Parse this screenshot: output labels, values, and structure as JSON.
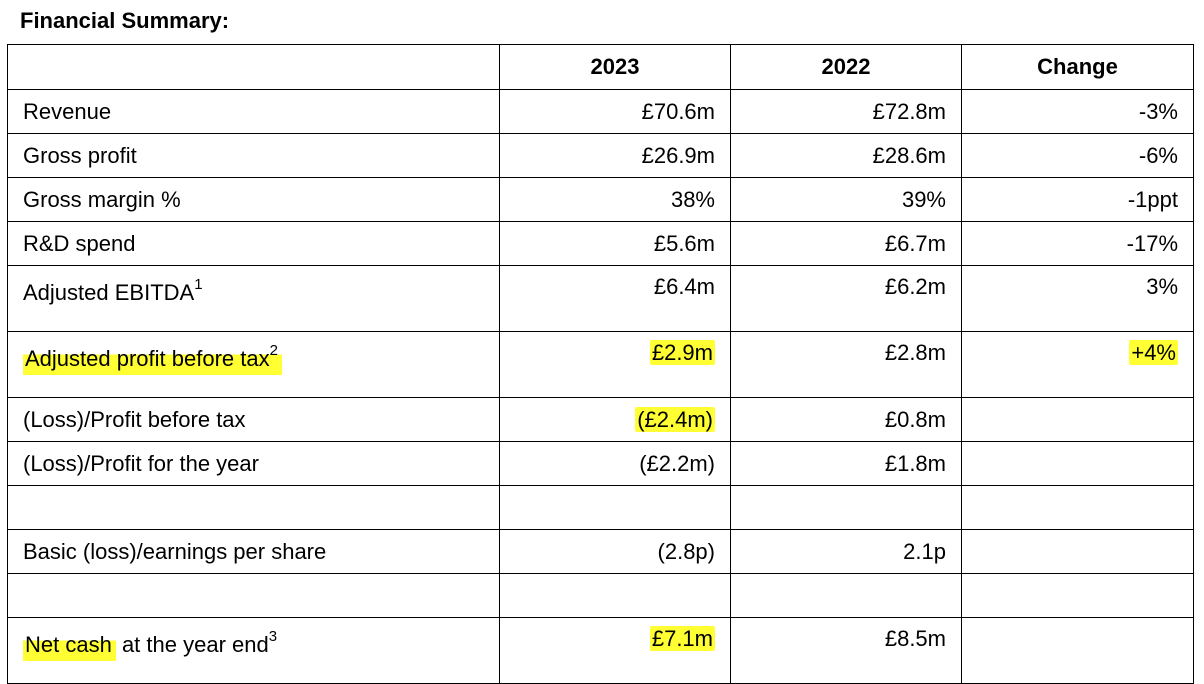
{
  "title": "Financial Summary:",
  "columns": [
    "",
    "2023",
    "2022",
    "Change"
  ],
  "rows": [
    {
      "label": "Revenue",
      "sup": "",
      "v2023": "£70.6m",
      "v2022": "£72.8m",
      "change": "-3%"
    },
    {
      "label": "Gross profit",
      "sup": "",
      "v2023": "£26.9m",
      "v2022": "£28.6m",
      "change": "-6%"
    },
    {
      "label": "Gross margin %",
      "sup": "",
      "v2023": "38%",
      "v2022": "39%",
      "change": "-1ppt"
    },
    {
      "label": "R&D spend",
      "sup": "",
      "v2023": "£5.6m",
      "v2022": "£6.7m",
      "change": "-17%"
    },
    {
      "label": "Adjusted EBITDA",
      "sup": "1",
      "v2023": "£6.4m",
      "v2022": "£6.2m",
      "change": "3%"
    },
    {
      "label": "Adjusted profit before tax",
      "sup": "2",
      "v2023": "£2.9m",
      "v2022": "£2.8m",
      "change": "+4%"
    },
    {
      "label": "(Loss)/Profit before tax",
      "sup": "",
      "v2023": "(£2.4m)",
      "v2022": "£0.8m",
      "change": ""
    },
    {
      "label": "(Loss)/Profit for the year",
      "sup": "",
      "v2023": "(£2.2m)",
      "v2022": "£1.8m",
      "change": ""
    },
    {
      "label": "Basic (loss)/earnings per share",
      "sup": "",
      "v2023": "(2.8p)",
      "v2022": "2.1p",
      "change": ""
    },
    {
      "label_a": "Net cash",
      "label_b": " at the year end",
      "sup": "3",
      "v2023": "£7.1m",
      "v2022": "£8.5m",
      "change": ""
    }
  ],
  "highlight_color": "#ffff33"
}
